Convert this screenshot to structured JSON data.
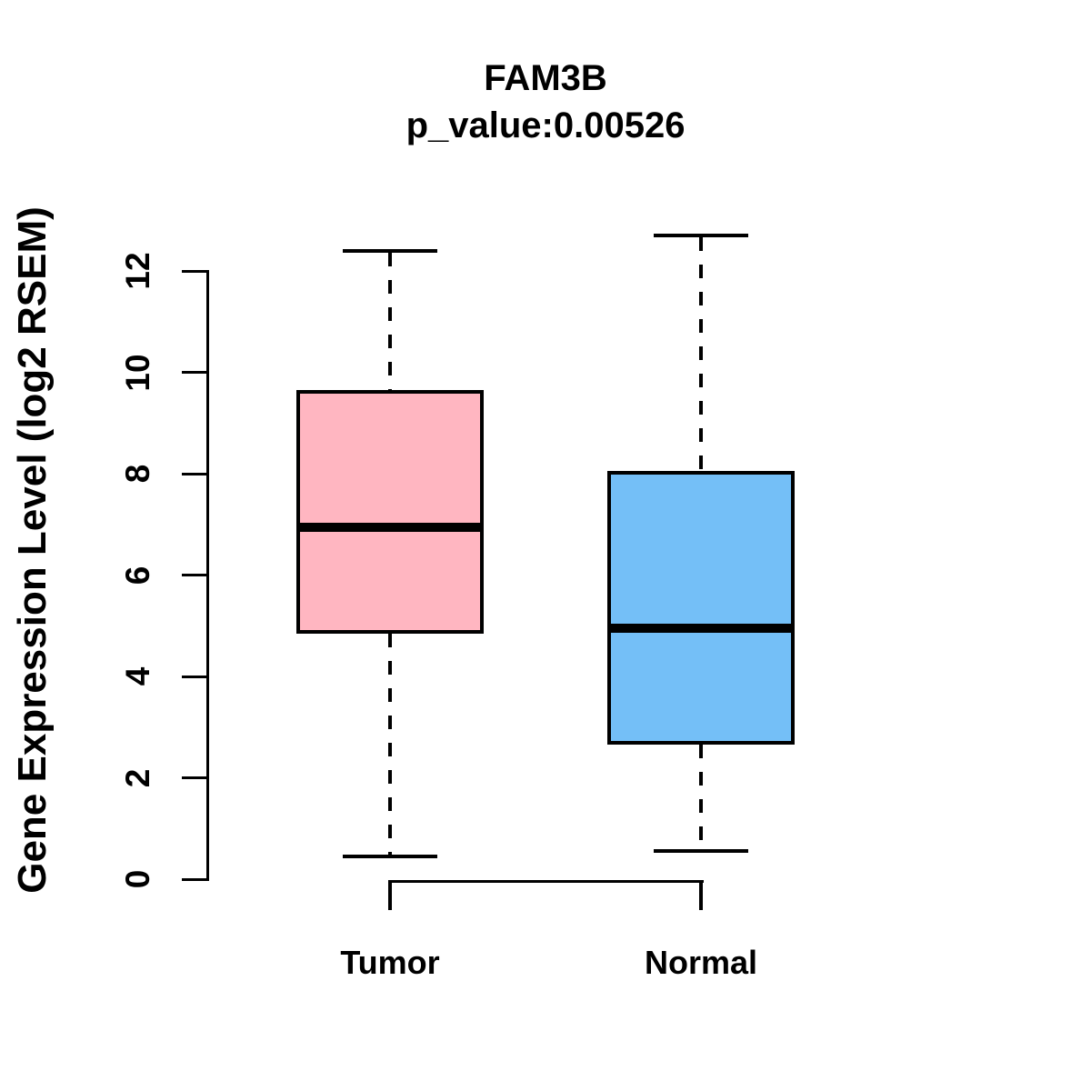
{
  "figure": {
    "title": "FAM3B",
    "subtitle": "p_value:0.00526"
  },
  "chart_data": {
    "type": "boxplot",
    "title": "FAM3B",
    "subtitle": "p_value:0.00526",
    "xlabel": "",
    "ylabel": "Gene Expression Level (log2 RSEM)",
    "ylim": [
      0,
      12
    ],
    "yticks": [
      0,
      2,
      4,
      6,
      8,
      10,
      12
    ],
    "grid": false,
    "legend": "none",
    "categories": [
      "Tumor",
      "Normal"
    ],
    "series": [
      {
        "name": "Tumor",
        "fill_color": "#FFB6C1",
        "whisker_low": 0.45,
        "q1": 4.85,
        "median": 6.95,
        "q3": 9.65,
        "whisker_high": 12.4,
        "outliers": []
      },
      {
        "name": "Normal",
        "fill_color": "#74BFF7",
        "whisker_low": 0.55,
        "q1": 2.65,
        "median": 4.95,
        "q3": 8.05,
        "whisker_high": 12.7,
        "outliers": []
      }
    ],
    "colors": {
      "stroke": "#000000",
      "background": "#ffffff"
    }
  }
}
